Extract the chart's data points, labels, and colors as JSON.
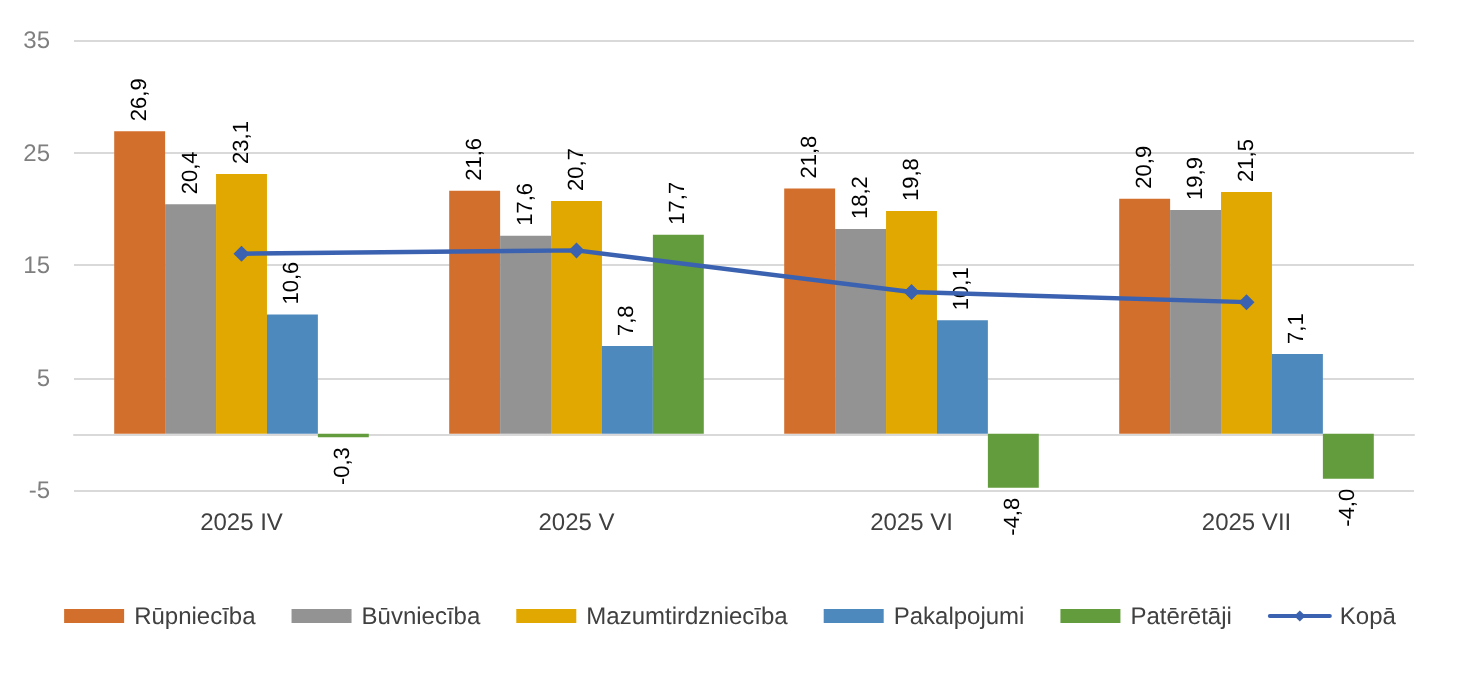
{
  "chart_data": {
    "type": "bar",
    "categories": [
      "2025 IV",
      "2025 V",
      "2025 VI",
      "2025 VII"
    ],
    "series": [
      {
        "name": "Rūpniecība",
        "color": "#d36f2c",
        "values": [
          26.9,
          21.6,
          21.8,
          20.9
        ],
        "value_labels": [
          "26,9",
          "21,6",
          "21,8",
          "20,9"
        ]
      },
      {
        "name": "Būvniecība",
        "color": "#939393",
        "values": [
          20.4,
          17.6,
          18.2,
          19.9
        ],
        "value_labels": [
          "20,4",
          "17,6",
          "18,2",
          "19,9"
        ]
      },
      {
        "name": "Mazumtirdzniecība",
        "color": "#e0a800",
        "values": [
          23.1,
          20.7,
          19.8,
          21.5
        ],
        "value_labels": [
          "23,1",
          "20,7",
          "19,8",
          "21,5"
        ]
      },
      {
        "name": "Pakalpojumi",
        "color": "#4e89be",
        "values": [
          10.6,
          7.8,
          10.1,
          7.1
        ],
        "value_labels": [
          "10,6",
          "7,8",
          "10,1",
          "7,1"
        ]
      },
      {
        "name": "Patērētāji",
        "color": "#639c3d",
        "values": [
          -0.3,
          17.7,
          -4.8,
          -4.0
        ],
        "value_labels": [
          "-0,3",
          "17,7",
          "-4,8",
          "-4,0"
        ]
      },
      {
        "name": "Kopā",
        "type": "line",
        "color": "#3b62b0",
        "values": [
          16.0,
          16.3,
          12.6,
          11.7
        ]
      }
    ],
    "ylim": [
      -5,
      35
    ],
    "yticks": [
      -5,
      5,
      15,
      25,
      35
    ],
    "grid": "y",
    "legend": "bottom",
    "marker": "diamond"
  }
}
